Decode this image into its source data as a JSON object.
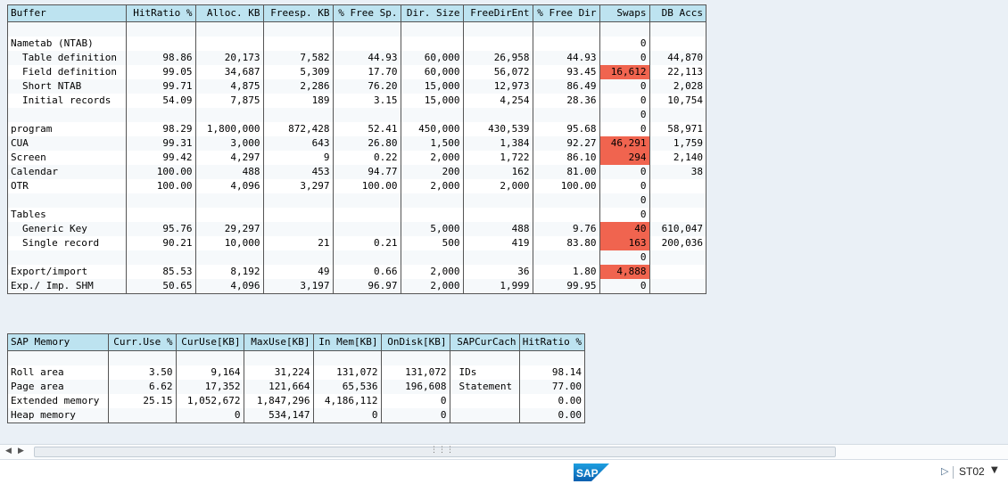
{
  "buffers": {
    "headers": [
      "Buffer",
      "HitRatio %",
      "Alloc. KB",
      "Freesp. KB",
      "% Free Sp.",
      "Dir. Size",
      "FreeDirEnt",
      "% Free Dir",
      "Swaps",
      "DB Accs"
    ],
    "rows": [
      {
        "cells": [
          "",
          "",
          "",
          "",
          "",
          "",
          "",
          "",
          "",
          ""
        ]
      },
      {
        "cells": [
          "Nametab (NTAB)",
          "",
          "",
          "",
          "",
          "",
          "",
          "",
          "0",
          ""
        ]
      },
      {
        "indent": true,
        "cells": [
          "Table definition",
          "98.86",
          "20,173",
          "7,582",
          "44.93",
          "60,000",
          "26,958",
          "44.93",
          "0",
          "44,870"
        ]
      },
      {
        "indent": true,
        "cells": [
          "Field definition",
          "99.05",
          "34,687",
          "5,309",
          "17.70",
          "60,000",
          "56,072",
          "93.45",
          "16,612",
          "22,113"
        ],
        "highlight": [
          8
        ]
      },
      {
        "indent": true,
        "cells": [
          "Short NTAB",
          "99.71",
          "4,875",
          "2,286",
          "76.20",
          "15,000",
          "12,973",
          "86.49",
          "0",
          "2,028"
        ]
      },
      {
        "indent": true,
        "cells": [
          "Initial records",
          "54.09",
          "7,875",
          "189",
          "3.15",
          "15,000",
          "4,254",
          "28.36",
          "0",
          "10,754"
        ]
      },
      {
        "cells": [
          "",
          "",
          "",
          "",
          "",
          "",
          "",
          "",
          "0",
          ""
        ]
      },
      {
        "cells": [
          "program",
          "98.29",
          "1,800,000",
          "872,428",
          "52.41",
          "450,000",
          "430,539",
          "95.68",
          "0",
          "58,971"
        ]
      },
      {
        "cells": [
          "CUA",
          "99.31",
          "3,000",
          "643",
          "26.80",
          "1,500",
          "1,384",
          "92.27",
          "46,291",
          "1,759"
        ],
        "highlight": [
          8
        ]
      },
      {
        "cells": [
          "Screen",
          "99.42",
          "4,297",
          "9",
          "0.22",
          "2,000",
          "1,722",
          "86.10",
          "294",
          "2,140"
        ],
        "highlight": [
          8
        ]
      },
      {
        "cells": [
          "Calendar",
          "100.00",
          "488",
          "453",
          "94.77",
          "200",
          "162",
          "81.00",
          "0",
          "38"
        ]
      },
      {
        "cells": [
          "OTR",
          "100.00",
          "4,096",
          "3,297",
          "100.00",
          "2,000",
          "2,000",
          "100.00",
          "0",
          ""
        ]
      },
      {
        "cells": [
          "",
          "",
          "",
          "",
          "",
          "",
          "",
          "",
          "0",
          ""
        ]
      },
      {
        "cells": [
          "Tables",
          "",
          "",
          "",
          "",
          "",
          "",
          "",
          "0",
          ""
        ]
      },
      {
        "indent": true,
        "cells": [
          "Generic Key",
          "95.76",
          "29,297",
          "",
          "",
          "5,000",
          "488",
          "9.76",
          "40",
          "610,047"
        ],
        "highlight": [
          8
        ]
      },
      {
        "indent": true,
        "cells": [
          "Single record",
          "90.21",
          "10,000",
          "21",
          "0.21",
          "500",
          "419",
          "83.80",
          "163",
          "200,036"
        ],
        "highlight": [
          8
        ]
      },
      {
        "cells": [
          "",
          "",
          "",
          "",
          "",
          "",
          "",
          "",
          "0",
          ""
        ]
      },
      {
        "cells": [
          "Export/import",
          "85.53",
          "8,192",
          "49",
          "0.66",
          "2,000",
          "36",
          "1.80",
          "4,888",
          ""
        ],
        "highlight": [
          8
        ]
      },
      {
        "cells": [
          "Exp./ Imp. SHM",
          "50.65",
          "4,096",
          "3,197",
          "96.97",
          "2,000",
          "1,999",
          "99.95",
          "0",
          ""
        ]
      }
    ]
  },
  "memory": {
    "headers": [
      "SAP Memory",
      "Curr.Use %",
      "CurUse[KB]",
      "MaxUse[KB]",
      "In Mem[KB]",
      "OnDisk[KB]",
      "SAPCurCach",
      "HitRatio %"
    ],
    "rows": [
      {
        "cells": [
          "",
          "",
          "",
          "",
          "",
          "",
          "",
          ""
        ]
      },
      {
        "cells": [
          "Roll area",
          "3.50",
          "9,164",
          "31,224",
          "131,072",
          "131,072",
          "IDs",
          "98.14"
        ]
      },
      {
        "cells": [
          "Page area",
          "6.62",
          "17,352",
          "121,664",
          "65,536",
          "196,608",
          "Statement",
          "77.00"
        ]
      },
      {
        "cells": [
          "Extended memory",
          "25.15",
          "1,052,672",
          "1,847,296",
          "4,186,112",
          "0",
          "",
          "0.00"
        ]
      },
      {
        "cells": [
          "Heap memory",
          "",
          "0",
          "534,147",
          "0",
          "0",
          "",
          "0.00"
        ]
      }
    ]
  },
  "statusbar": {
    "system": "ST02",
    "logo": "SAP"
  },
  "colors": {
    "header_bg": "#bde3f0",
    "swap_highlight": "#f0644f",
    "page_bg": "#eaf0f6"
  },
  "icons": {
    "scroll_left": "left-arrow-icon",
    "scroll_right": "right-arrow-icon",
    "status_play": "play-icon",
    "status_dropdown": "dropdown-icon"
  }
}
